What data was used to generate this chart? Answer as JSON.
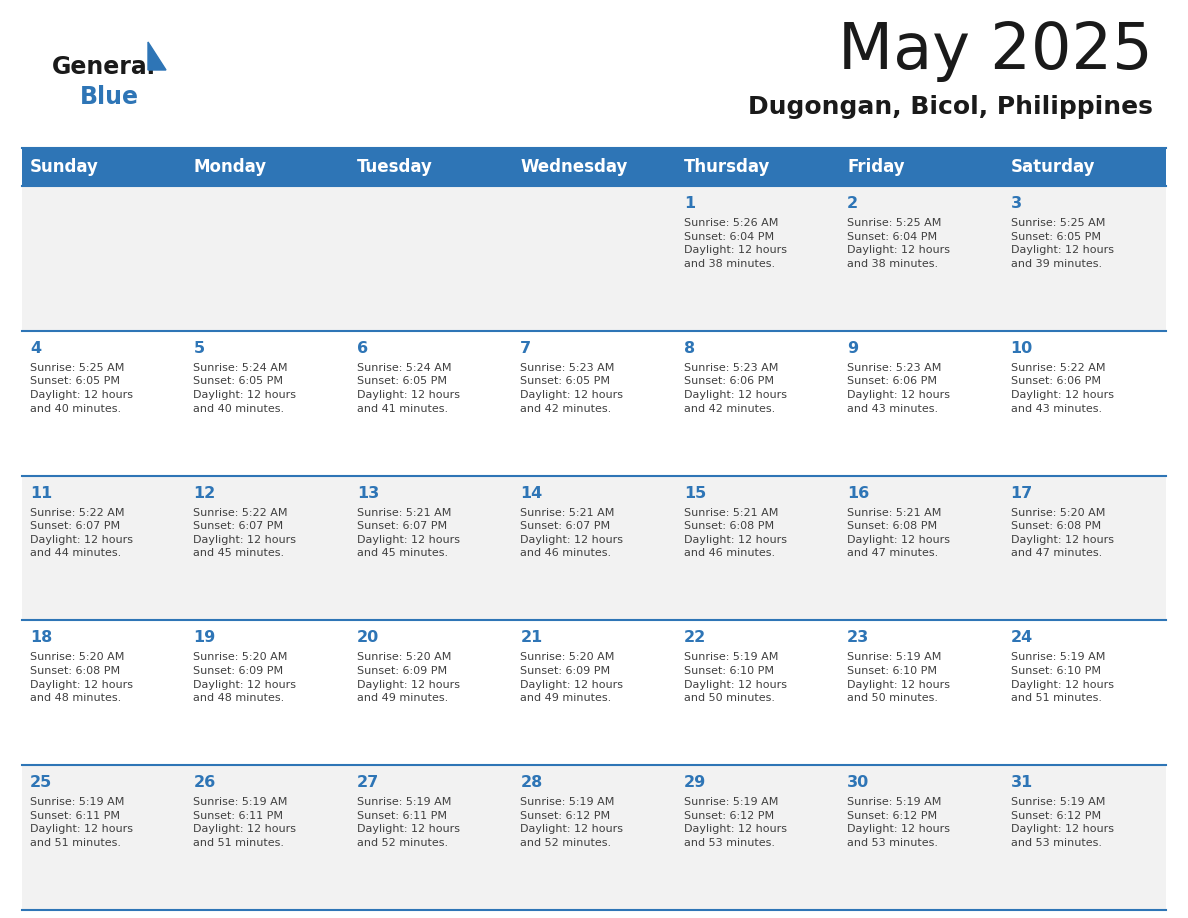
{
  "title": "May 2025",
  "subtitle": "Dugongan, Bicol, Philippines",
  "days_of_week": [
    "Sunday",
    "Monday",
    "Tuesday",
    "Wednesday",
    "Thursday",
    "Friday",
    "Saturday"
  ],
  "header_bg": "#2E75B6",
  "header_text": "#FFFFFF",
  "row_bg_odd": "#F2F2F2",
  "row_bg_even": "#FFFFFF",
  "grid_line_color": "#2E75B6",
  "date_text_color": "#2E75B6",
  "info_text_color": "#404040",
  "title_color": "#1a1a1a",
  "subtitle_color": "#1a1a1a",
  "logo_text_color": "#1a1a1a",
  "logo_blue_color": "#2E75B6",
  "calendar_data": [
    [
      {
        "day": "",
        "info": ""
      },
      {
        "day": "",
        "info": ""
      },
      {
        "day": "",
        "info": ""
      },
      {
        "day": "",
        "info": ""
      },
      {
        "day": "1",
        "info": "Sunrise: 5:26 AM\nSunset: 6:04 PM\nDaylight: 12 hours\nand 38 minutes."
      },
      {
        "day": "2",
        "info": "Sunrise: 5:25 AM\nSunset: 6:04 PM\nDaylight: 12 hours\nand 38 minutes."
      },
      {
        "day": "3",
        "info": "Sunrise: 5:25 AM\nSunset: 6:05 PM\nDaylight: 12 hours\nand 39 minutes."
      }
    ],
    [
      {
        "day": "4",
        "info": "Sunrise: 5:25 AM\nSunset: 6:05 PM\nDaylight: 12 hours\nand 40 minutes."
      },
      {
        "day": "5",
        "info": "Sunrise: 5:24 AM\nSunset: 6:05 PM\nDaylight: 12 hours\nand 40 minutes."
      },
      {
        "day": "6",
        "info": "Sunrise: 5:24 AM\nSunset: 6:05 PM\nDaylight: 12 hours\nand 41 minutes."
      },
      {
        "day": "7",
        "info": "Sunrise: 5:23 AM\nSunset: 6:05 PM\nDaylight: 12 hours\nand 42 minutes."
      },
      {
        "day": "8",
        "info": "Sunrise: 5:23 AM\nSunset: 6:06 PM\nDaylight: 12 hours\nand 42 minutes."
      },
      {
        "day": "9",
        "info": "Sunrise: 5:23 AM\nSunset: 6:06 PM\nDaylight: 12 hours\nand 43 minutes."
      },
      {
        "day": "10",
        "info": "Sunrise: 5:22 AM\nSunset: 6:06 PM\nDaylight: 12 hours\nand 43 minutes."
      }
    ],
    [
      {
        "day": "11",
        "info": "Sunrise: 5:22 AM\nSunset: 6:07 PM\nDaylight: 12 hours\nand 44 minutes."
      },
      {
        "day": "12",
        "info": "Sunrise: 5:22 AM\nSunset: 6:07 PM\nDaylight: 12 hours\nand 45 minutes."
      },
      {
        "day": "13",
        "info": "Sunrise: 5:21 AM\nSunset: 6:07 PM\nDaylight: 12 hours\nand 45 minutes."
      },
      {
        "day": "14",
        "info": "Sunrise: 5:21 AM\nSunset: 6:07 PM\nDaylight: 12 hours\nand 46 minutes."
      },
      {
        "day": "15",
        "info": "Sunrise: 5:21 AM\nSunset: 6:08 PM\nDaylight: 12 hours\nand 46 minutes."
      },
      {
        "day": "16",
        "info": "Sunrise: 5:21 AM\nSunset: 6:08 PM\nDaylight: 12 hours\nand 47 minutes."
      },
      {
        "day": "17",
        "info": "Sunrise: 5:20 AM\nSunset: 6:08 PM\nDaylight: 12 hours\nand 47 minutes."
      }
    ],
    [
      {
        "day": "18",
        "info": "Sunrise: 5:20 AM\nSunset: 6:08 PM\nDaylight: 12 hours\nand 48 minutes."
      },
      {
        "day": "19",
        "info": "Sunrise: 5:20 AM\nSunset: 6:09 PM\nDaylight: 12 hours\nand 48 minutes."
      },
      {
        "day": "20",
        "info": "Sunrise: 5:20 AM\nSunset: 6:09 PM\nDaylight: 12 hours\nand 49 minutes."
      },
      {
        "day": "21",
        "info": "Sunrise: 5:20 AM\nSunset: 6:09 PM\nDaylight: 12 hours\nand 49 minutes."
      },
      {
        "day": "22",
        "info": "Sunrise: 5:19 AM\nSunset: 6:10 PM\nDaylight: 12 hours\nand 50 minutes."
      },
      {
        "day": "23",
        "info": "Sunrise: 5:19 AM\nSunset: 6:10 PM\nDaylight: 12 hours\nand 50 minutes."
      },
      {
        "day": "24",
        "info": "Sunrise: 5:19 AM\nSunset: 6:10 PM\nDaylight: 12 hours\nand 51 minutes."
      }
    ],
    [
      {
        "day": "25",
        "info": "Sunrise: 5:19 AM\nSunset: 6:11 PM\nDaylight: 12 hours\nand 51 minutes."
      },
      {
        "day": "26",
        "info": "Sunrise: 5:19 AM\nSunset: 6:11 PM\nDaylight: 12 hours\nand 51 minutes."
      },
      {
        "day": "27",
        "info": "Sunrise: 5:19 AM\nSunset: 6:11 PM\nDaylight: 12 hours\nand 52 minutes."
      },
      {
        "day": "28",
        "info": "Sunrise: 5:19 AM\nSunset: 6:12 PM\nDaylight: 12 hours\nand 52 minutes."
      },
      {
        "day": "29",
        "info": "Sunrise: 5:19 AM\nSunset: 6:12 PM\nDaylight: 12 hours\nand 53 minutes."
      },
      {
        "day": "30",
        "info": "Sunrise: 5:19 AM\nSunset: 6:12 PM\nDaylight: 12 hours\nand 53 minutes."
      },
      {
        "day": "31",
        "info": "Sunrise: 5:19 AM\nSunset: 6:12 PM\nDaylight: 12 hours\nand 53 minutes."
      }
    ]
  ]
}
